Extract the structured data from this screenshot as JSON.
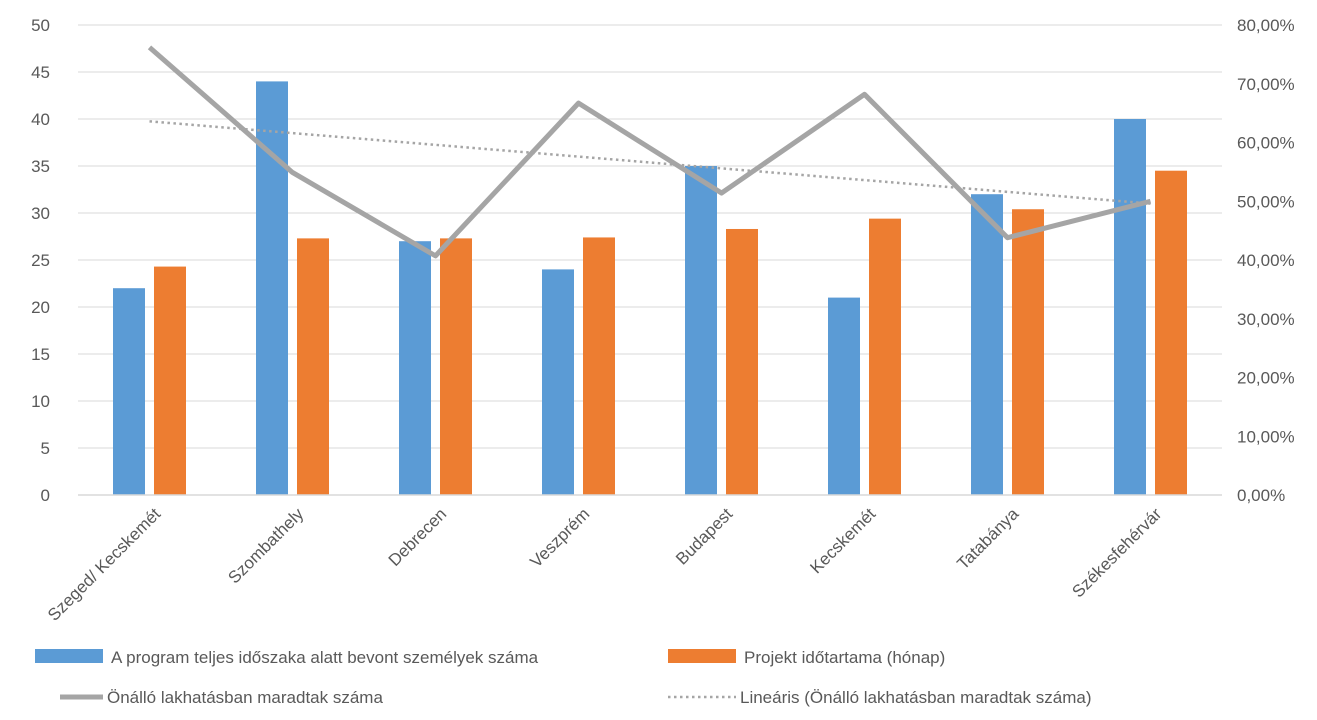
{
  "chart_data": {
    "type": "bar",
    "categories": [
      "Szeged/ Kecskemét",
      "Szombathely",
      "Debrecen",
      "Veszprém",
      "Budapest",
      "Kecskemét",
      "Tatabánya",
      "Székesfehérvár"
    ],
    "series": [
      {
        "name": "A program teljes időszaka alatt bevont személyek száma",
        "type": "bar",
        "axis": "left",
        "color": "#5B9BD5",
        "values": [
          22,
          44,
          27,
          24,
          35,
          21,
          32,
          40
        ]
      },
      {
        "name": "Projekt időtartama (hónap)",
        "type": "bar",
        "axis": "left",
        "color": "#ED7D31",
        "values": [
          24.3,
          27.3,
          27.3,
          27.4,
          28.3,
          29.4,
          30.4,
          34.5
        ]
      },
      {
        "name": "Önálló lakhatásban maradtak száma",
        "type": "line",
        "axis": "right",
        "color": "#A5A5A5",
        "values": [
          0.762,
          0.549,
          0.407,
          0.667,
          0.514,
          0.682,
          0.438,
          0.5
        ]
      },
      {
        "name": "Lineáris (Önálló lakhatásban maradtak száma)",
        "type": "trendline",
        "axis": "right",
        "color": "#A5A5A5",
        "values": [
          0.636,
          0.616,
          0.596,
          0.576,
          0.556,
          0.536,
          0.516,
          0.496
        ]
      }
    ],
    "y_left": {
      "range": [
        0,
        50
      ],
      "ticks": [
        "0",
        "5",
        "10",
        "15",
        "20",
        "25",
        "30",
        "35",
        "40",
        "45",
        "50"
      ]
    },
    "y_right": {
      "range": [
        0,
        0.8
      ],
      "ticks": [
        "0,00%",
        "10,00%",
        "20,00%",
        "30,00%",
        "40,00%",
        "50,00%",
        "60,00%",
        "70,00%",
        "80,00%"
      ]
    },
    "grid": true,
    "legend_position": "bottom"
  }
}
